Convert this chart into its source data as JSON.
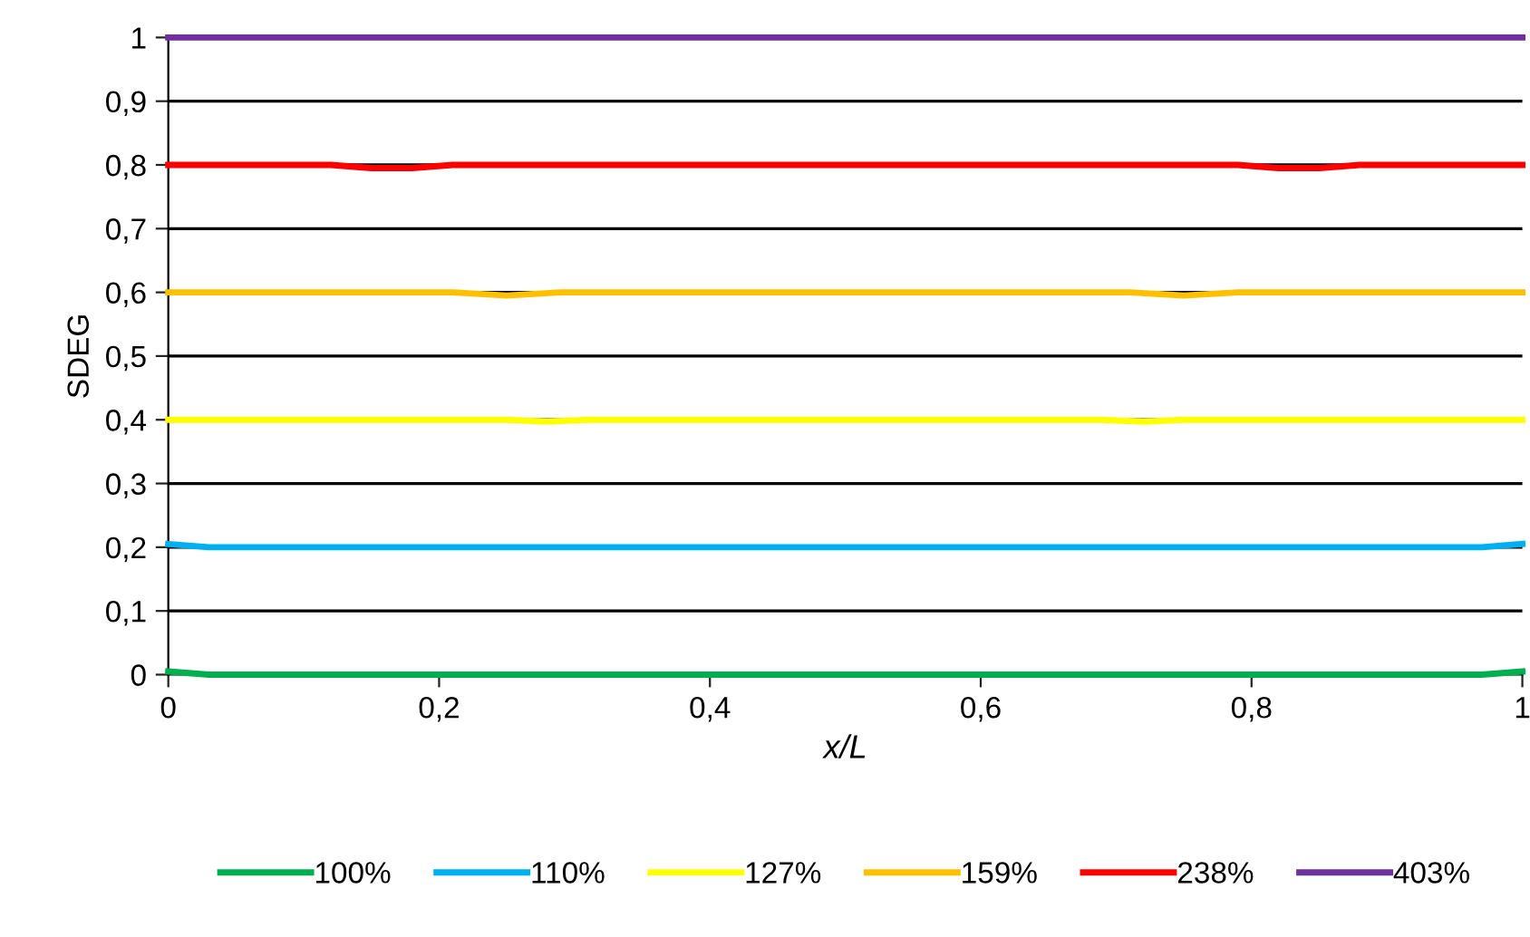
{
  "chart_data": {
    "type": "line",
    "xlabel": "x/L",
    "ylabel": "SDEG",
    "xlim": [
      0,
      1
    ],
    "ylim": [
      0,
      1
    ],
    "xticks": [
      0,
      {
        "value": 0.2,
        "label": "0,2"
      },
      {
        "value": 0.4,
        "label": "0,4"
      },
      {
        "value": 0.6,
        "label": "0,6"
      },
      {
        "value": 0.8,
        "label": "0,8"
      },
      1
    ],
    "yticks": [
      0,
      {
        "value": 0.1,
        "label": "0,1"
      },
      {
        "value": 0.2,
        "label": "0,2"
      },
      {
        "value": 0.3,
        "label": "0,3"
      },
      {
        "value": 0.4,
        "label": "0,4"
      },
      {
        "value": 0.5,
        "label": "0,5"
      },
      {
        "value": 0.6,
        "label": "0,6"
      },
      {
        "value": 0.7,
        "label": "0,7"
      },
      {
        "value": 0.8,
        "label": "0,8"
      },
      {
        "value": 0.9,
        "label": "0,9"
      },
      1
    ],
    "grid": "y",
    "legend": "bottom",
    "marker": "none",
    "line_style": "solid",
    "series": [
      {
        "name": "100%",
        "color": "#00b050",
        "x": [
          0,
          0.03,
          0.5,
          0.97,
          1
        ],
        "values": [
          0.005,
          0,
          0,
          0,
          0.005
        ]
      },
      {
        "name": "110%",
        "color": "#00b0f0",
        "x": [
          0,
          0.03,
          0.5,
          0.97,
          1
        ],
        "values": [
          0.205,
          0.2,
          0.2,
          0.2,
          0.205
        ]
      },
      {
        "name": "127%",
        "color": "#ffff00",
        "x": [
          0,
          0.25,
          0.28,
          0.31,
          0.5,
          0.69,
          0.72,
          0.75,
          1
        ],
        "values": [
          0.4,
          0.4,
          0.397,
          0.4,
          0.4,
          0.4,
          0.397,
          0.4,
          0.4
        ]
      },
      {
        "name": "159%",
        "color": "#ffc000",
        "x": [
          0,
          0.21,
          0.25,
          0.29,
          0.5,
          0.71,
          0.75,
          0.79,
          1
        ],
        "values": [
          0.6,
          0.6,
          0.595,
          0.6,
          0.6,
          0.6,
          0.595,
          0.6,
          0.6
        ]
      },
      {
        "name": "238%",
        "color": "#ff0000",
        "x": [
          0,
          0.12,
          0.15,
          0.18,
          0.21,
          0.5,
          0.79,
          0.82,
          0.85,
          0.88,
          1
        ],
        "values": [
          0.8,
          0.8,
          0.795,
          0.795,
          0.8,
          0.8,
          0.8,
          0.795,
          0.795,
          0.8,
          0.8
        ]
      },
      {
        "name": "403%",
        "color": "#7030a0",
        "x": [
          0,
          0.5,
          1
        ],
        "values": [
          1,
          1,
          1
        ]
      }
    ]
  }
}
